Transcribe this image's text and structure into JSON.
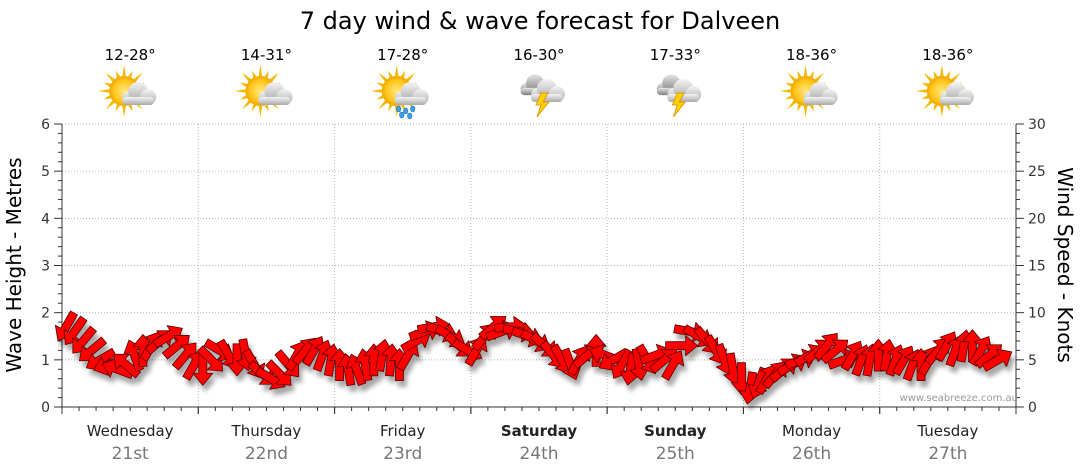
{
  "title": "7 day wind & wave forecast for Dalveen",
  "watermark": "www.seabreeze.com.au",
  "days": [
    {
      "day": "Wednesday",
      "date": "21st",
      "temp": "12-28°",
      "icon": "sun-cloud-icon",
      "bold": false
    },
    {
      "day": "Thursday",
      "date": "22nd",
      "temp": "14-31°",
      "icon": "sun-cloud-icon",
      "bold": false
    },
    {
      "day": "Friday",
      "date": "23rd",
      "temp": "17-28°",
      "icon": "sun-cloud-rain-icon",
      "bold": false
    },
    {
      "day": "Saturday",
      "date": "24th",
      "temp": "16-30°",
      "icon": "storm-icon",
      "bold": true
    },
    {
      "day": "Sunday",
      "date": "25th",
      "temp": "17-33°",
      "icon": "storm-icon",
      "bold": true
    },
    {
      "day": "Monday",
      "date": "26th",
      "temp": "18-36°",
      "icon": "sun-cloud-icon",
      "bold": false
    },
    {
      "day": "Tuesday",
      "date": "27th",
      "temp": "18-36°",
      "icon": "sun-cloud-icon",
      "bold": false
    }
  ],
  "colors": {
    "arrow": "#ff0000",
    "arrow_stroke": "#5a0000",
    "grid": "#b5b5b5",
    "axis": "#333333"
  },
  "chart_data": {
    "type": "line",
    "title": "7 day wind & wave forecast for Dalveen",
    "ylabel_left": "Wave Height - Metres",
    "ylabel_right": "Wind Speed - Knots",
    "yticks_left": [
      "0",
      "1",
      "2",
      "3",
      "4",
      "5",
      "6"
    ],
    "yticks_right": [
      "0",
      "5",
      "10",
      "15",
      "20",
      "25",
      "30"
    ],
    "ylim_left": [
      0,
      6
    ],
    "ylim_right": [
      0,
      30
    ],
    "grid": true,
    "series": [
      {
        "name": "Wind Speed - Knots",
        "encoding": "arrows, one per hour, pointing in wind travel direction (degrees)",
        "values": [
          {
            "t": 0,
            "speed": 8.5,
            "dir": 120
          },
          {
            "t": 1,
            "speed": 8.0,
            "dir": 125
          },
          {
            "t": 2,
            "speed": 7.0,
            "dir": 130
          },
          {
            "t": 3,
            "speed": 6.0,
            "dir": 140
          },
          {
            "t": 4,
            "speed": 5.0,
            "dir": 150
          },
          {
            "t": 5,
            "speed": 4.5,
            "dir": 160
          },
          {
            "t": 6,
            "speed": 4.0,
            "dir": 200
          },
          {
            "t": 7,
            "speed": 4.5,
            "dir": 220
          },
          {
            "t": 8,
            "speed": 5.5,
            "dir": 250
          },
          {
            "t": 9,
            "speed": 6.0,
            "dir": 270
          },
          {
            "t": 10,
            "speed": 6.5,
            "dir": 300
          },
          {
            "t": 11,
            "speed": 7.0,
            "dir": 320
          },
          {
            "t": 12,
            "speed": 7.5,
            "dir": 330
          },
          {
            "t": 13,
            "speed": 6.5,
            "dir": 320
          },
          {
            "t": 14,
            "speed": 5.5,
            "dir": 310
          },
          {
            "t": 15,
            "speed": 4.5,
            "dir": 300
          },
          {
            "t": 16,
            "speed": 4.0,
            "dir": 90
          },
          {
            "t": 17,
            "speed": 5.0,
            "dir": 45
          },
          {
            "t": 18,
            "speed": 6.0,
            "dir": 30
          },
          {
            "t": 19,
            "speed": 5.5,
            "dir": 60
          },
          {
            "t": 20,
            "speed": 5.0,
            "dir": 90
          },
          {
            "t": 21,
            "speed": 5.5,
            "dir": 80
          },
          {
            "t": 22,
            "speed": 4.5,
            "dir": 60
          },
          {
            "t": 23,
            "speed": 3.5,
            "dir": 40
          },
          {
            "t": 24,
            "speed": 3.0,
            "dir": 30
          },
          {
            "t": 25,
            "speed": 3.5,
            "dir": 45
          },
          {
            "t": 26,
            "speed": 4.5,
            "dir": 50
          },
          {
            "t": 27,
            "speed": 5.5,
            "dir": 300
          },
          {
            "t": 28,
            "speed": 6.0,
            "dir": 310
          },
          {
            "t": 29,
            "speed": 6.0,
            "dir": 300
          },
          {
            "t": 30,
            "speed": 5.5,
            "dir": 290
          },
          {
            "t": 31,
            "speed": 5.0,
            "dir": 280
          },
          {
            "t": 32,
            "speed": 4.5,
            "dir": 270
          },
          {
            "t": 33,
            "speed": 4.0,
            "dir": 260
          },
          {
            "t": 34,
            "speed": 4.0,
            "dir": 250
          },
          {
            "t": 35,
            "speed": 4.5,
            "dir": 260
          },
          {
            "t": 36,
            "speed": 5.0,
            "dir": 270
          },
          {
            "t": 37,
            "speed": 5.5,
            "dir": 280
          },
          {
            "t": 38,
            "speed": 5.0,
            "dir": 275
          },
          {
            "t": 39,
            "speed": 4.5,
            "dir": 270
          },
          {
            "t": 40,
            "speed": 5.5,
            "dir": 300
          },
          {
            "t": 41,
            "speed": 7.0,
            "dir": 330
          },
          {
            "t": 42,
            "speed": 8.0,
            "dir": 340
          },
          {
            "t": 43,
            "speed": 8.5,
            "dir": 350
          },
          {
            "t": 44,
            "speed": 8.0,
            "dir": 20
          },
          {
            "t": 45,
            "speed": 7.5,
            "dir": 30
          },
          {
            "t": 46,
            "speed": 6.5,
            "dir": 40
          },
          {
            "t": 47,
            "speed": 6.0,
            "dir": 30
          },
          {
            "t": 48,
            "speed": 6.0,
            "dir": 300
          },
          {
            "t": 49,
            "speed": 7.5,
            "dir": 310
          },
          {
            "t": 50,
            "speed": 8.5,
            "dir": 320
          },
          {
            "t": 51,
            "speed": 8.0,
            "dir": 340
          },
          {
            "t": 52,
            "speed": 8.5,
            "dir": 355
          },
          {
            "t": 53,
            "speed": 8.0,
            "dir": 10
          },
          {
            "t": 54,
            "speed": 7.5,
            "dir": 20
          },
          {
            "t": 55,
            "speed": 7.0,
            "dir": 30
          },
          {
            "t": 56,
            "speed": 6.5,
            "dir": 40
          },
          {
            "t": 57,
            "speed": 5.5,
            "dir": 50
          },
          {
            "t": 58,
            "speed": 5.0,
            "dir": 60
          },
          {
            "t": 59,
            "speed": 4.5,
            "dir": 70
          },
          {
            "t": 60,
            "speed": 5.0,
            "dir": 300
          },
          {
            "t": 61,
            "speed": 5.5,
            "dir": 320
          },
          {
            "t": 62,
            "speed": 6.0,
            "dir": 270
          },
          {
            "t": 63,
            "speed": 5.5,
            "dir": 200
          },
          {
            "t": 64,
            "speed": 5.0,
            "dir": 150
          },
          {
            "t": 65,
            "speed": 4.5,
            "dir": 120
          },
          {
            "t": 66,
            "speed": 4.0,
            "dir": 100
          },
          {
            "t": 67,
            "speed": 4.5,
            "dir": 80
          },
          {
            "t": 68,
            "speed": 5.0,
            "dir": 60
          },
          {
            "t": 69,
            "speed": 5.5,
            "dir": 340
          },
          {
            "t": 70,
            "speed": 5.0,
            "dir": 320
          },
          {
            "t": 71,
            "speed": 4.5,
            "dir": 300
          },
          {
            "t": 72,
            "speed": 6.5,
            "dir": 0
          },
          {
            "t": 73,
            "speed": 8.0,
            "dir": 10
          },
          {
            "t": 74,
            "speed": 7.5,
            "dir": 30
          },
          {
            "t": 75,
            "speed": 7.0,
            "dir": 50
          },
          {
            "t": 76,
            "speed": 6.0,
            "dir": 60
          },
          {
            "t": 77,
            "speed": 5.0,
            "dir": 70
          },
          {
            "t": 78,
            "speed": 4.0,
            "dir": 80
          },
          {
            "t": 79,
            "speed": 3.0,
            "dir": 90
          },
          {
            "t": 80,
            "speed": 2.0,
            "dir": 100
          },
          {
            "t": 81,
            "speed": 2.5,
            "dir": 110
          },
          {
            "t": 82,
            "speed": 3.0,
            "dir": 300
          },
          {
            "t": 83,
            "speed": 3.5,
            "dir": 310
          },
          {
            "t": 84,
            "speed": 4.0,
            "dir": 320
          },
          {
            "t": 85,
            "speed": 4.5,
            "dir": 330
          },
          {
            "t": 86,
            "speed": 5.0,
            "dir": 340
          },
          {
            "t": 87,
            "speed": 5.5,
            "dir": 330
          },
          {
            "t": 88,
            "speed": 6.0,
            "dir": 320
          },
          {
            "t": 89,
            "speed": 6.5,
            "dir": 310
          },
          {
            "t": 90,
            "speed": 6.0,
            "dir": 320
          },
          {
            "t": 91,
            "speed": 5.0,
            "dir": 340
          },
          {
            "t": 92,
            "speed": 5.5,
            "dir": 300
          },
          {
            "t": 93,
            "speed": 5.0,
            "dir": 290
          },
          {
            "t": 94,
            "speed": 5.0,
            "dir": 280
          },
          {
            "t": 95,
            "speed": 5.5,
            "dir": 270
          },
          {
            "t": 96,
            "speed": 5.5,
            "dir": 280
          },
          {
            "t": 97,
            "speed": 5.0,
            "dir": 290
          },
          {
            "t": 98,
            "speed": 5.0,
            "dir": 300
          },
          {
            "t": 99,
            "speed": 4.5,
            "dir": 290
          },
          {
            "t": 100,
            "speed": 4.5,
            "dir": 270
          },
          {
            "t": 101,
            "speed": 5.0,
            "dir": 300
          },
          {
            "t": 102,
            "speed": 6.0,
            "dir": 310
          },
          {
            "t": 103,
            "speed": 6.5,
            "dir": 300
          },
          {
            "t": 104,
            "speed": 6.0,
            "dir": 290
          },
          {
            "t": 105,
            "speed": 6.5,
            "dir": 280
          },
          {
            "t": 106,
            "speed": 6.5,
            "dir": 270
          },
          {
            "t": 107,
            "speed": 6.0,
            "dir": 300
          },
          {
            "t": 108,
            "speed": 5.5,
            "dir": 320
          },
          {
            "t": 109,
            "speed": 5.0,
            "dir": 330
          }
        ]
      }
    ]
  }
}
